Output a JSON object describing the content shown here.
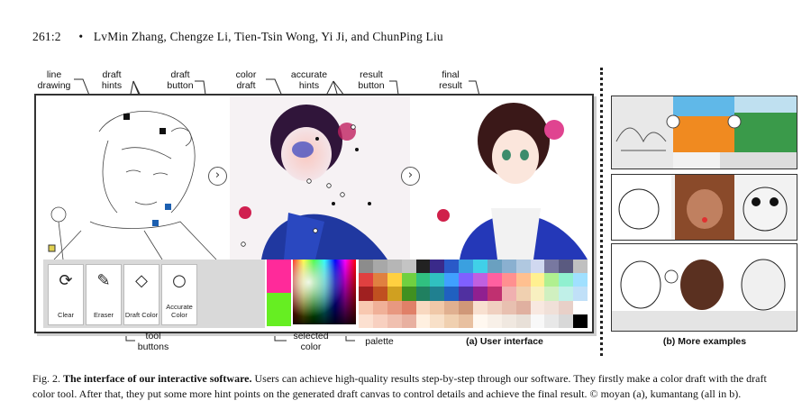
{
  "header": {
    "page": "261:2",
    "authors": "LvMin Zhang, Chengze Li, Tien-Tsin Wong, Yi Ji, and ChunPing Liu"
  },
  "labels": {
    "line_drawing": [
      "line",
      "drawing"
    ],
    "draft_hints": [
      "draft",
      "hints"
    ],
    "draft_button": [
      "draft",
      "button"
    ],
    "color_draft": [
      "color",
      "draft"
    ],
    "accurate_hints": [
      "accurate",
      "hints"
    ],
    "result_button": [
      "result",
      "button"
    ],
    "final_result": [
      "final",
      "result"
    ],
    "tool_buttons": [
      "tool",
      "buttons"
    ],
    "selected_color": [
      "selected",
      "color"
    ],
    "palette": "palette"
  },
  "tools": [
    {
      "label": "Clear",
      "icon": "refresh-icon"
    },
    {
      "label": "Eraser",
      "icon": "eraser-icon"
    },
    {
      "label": "Draft Color",
      "icon": "diamond-icon"
    },
    {
      "label": "Accurate Color",
      "icon": "circle-icon"
    }
  ],
  "subcaptions": {
    "a": "(a) User interface",
    "b": "(b) More examples"
  },
  "caption": {
    "prefix": "Fig. 2.",
    "title": "The interface of our interactive software.",
    "body": "Users can achieve high-quality results step-by-step through our software. They firstly make a color draft with the draft color tool. After that, they put some more hint points on the generated draft canvas to control details and achieve the final result. © moyan (a), kumantang (all in b)."
  },
  "colors": {
    "selected_top": "#ff2a9a",
    "selected_bottom": "#66ee22",
    "palette": [
      "#8c8c8c",
      "#a8a8a8",
      "#b6b6b6",
      "#c4c4c4",
      "#222222",
      "#3a2a8a",
      "#2a5ac8",
      "#3aa0e0",
      "#40d0e8",
      "#6aa0c0",
      "#8ab0d0",
      "#b0c8e0",
      "#d0d8f0",
      "#7878a0",
      "#5a5a80",
      "#c0c0c0",
      "#e04040",
      "#e08040",
      "#ffd040",
      "#70d040",
      "#30c080",
      "#30c0c0",
      "#40a0ff",
      "#8060ff",
      "#c060e0",
      "#ff60a0",
      "#ff9090",
      "#ffc090",
      "#fff090",
      "#b0f090",
      "#90f0d0",
      "#a0e0ff",
      "#a02020",
      "#c05020",
      "#d0a020",
      "#409020",
      "#208060",
      "#208090",
      "#2060c0",
      "#5030a0",
      "#902090",
      "#c03070",
      "#f0b0b0",
      "#f0d0b0",
      "#f8f0c0",
      "#d0f0c0",
      "#c0f0e8",
      "#c0e0f8",
      "#f8c8b0",
      "#f0b098",
      "#e89880",
      "#e08068",
      "#f8d8c0",
      "#f0c8a8",
      "#e0b090",
      "#d09878",
      "#f8e0d0",
      "#f0d0c0",
      "#e8c0b0",
      "#e0b0a0",
      "#f8e8e0",
      "#f0e0d8",
      "#e8d0c8",
      "#ffffff",
      "#fce0d0",
      "#f8d0c0",
      "#f0c0b0",
      "#e8b0a0",
      "#fff0e0",
      "#f8e0c8",
      "#f0d0b0",
      "#e8c0a0",
      "#fff8f0",
      "#f8f0e8",
      "#f0e8e0",
      "#e8e0d8",
      "#f8f8f8",
      "#e8e8e8",
      "#d8d8d8",
      "#000000"
    ]
  }
}
